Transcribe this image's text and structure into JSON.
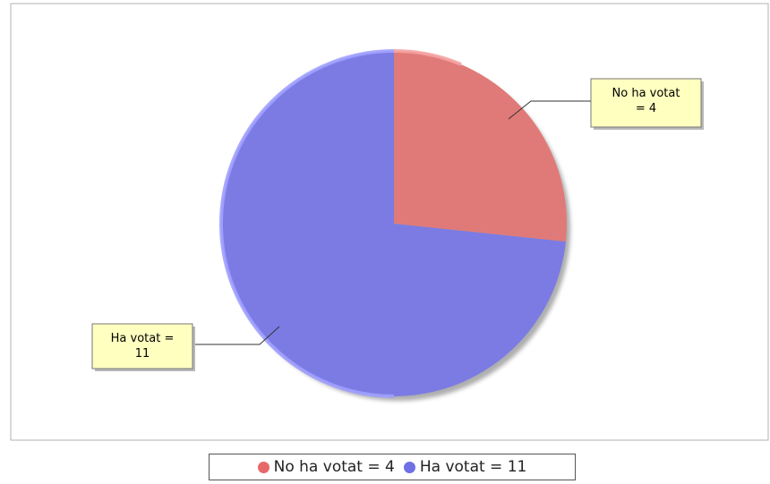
{
  "chart_data": {
    "type": "pie",
    "title": "",
    "slices": [
      {
        "label": "No ha votat = 4",
        "value": 4,
        "color": "#e07a78",
        "callout_lines": [
          "No ha votat",
          "= 4"
        ]
      },
      {
        "label": "Ha votat = 11",
        "value": 11,
        "color": "#7b7be3",
        "callout_lines": [
          "Ha votat =",
          "11"
        ]
      }
    ],
    "legend": {
      "placement": "bottom",
      "entries": [
        {
          "label": "No ha votat  =  4",
          "color": "#e8686a"
        },
        {
          "label": "Ha votat  =  11",
          "color": "#6f6fe6"
        }
      ]
    },
    "plot_background": "#ffffff",
    "callout_background": "#ffffc0"
  }
}
